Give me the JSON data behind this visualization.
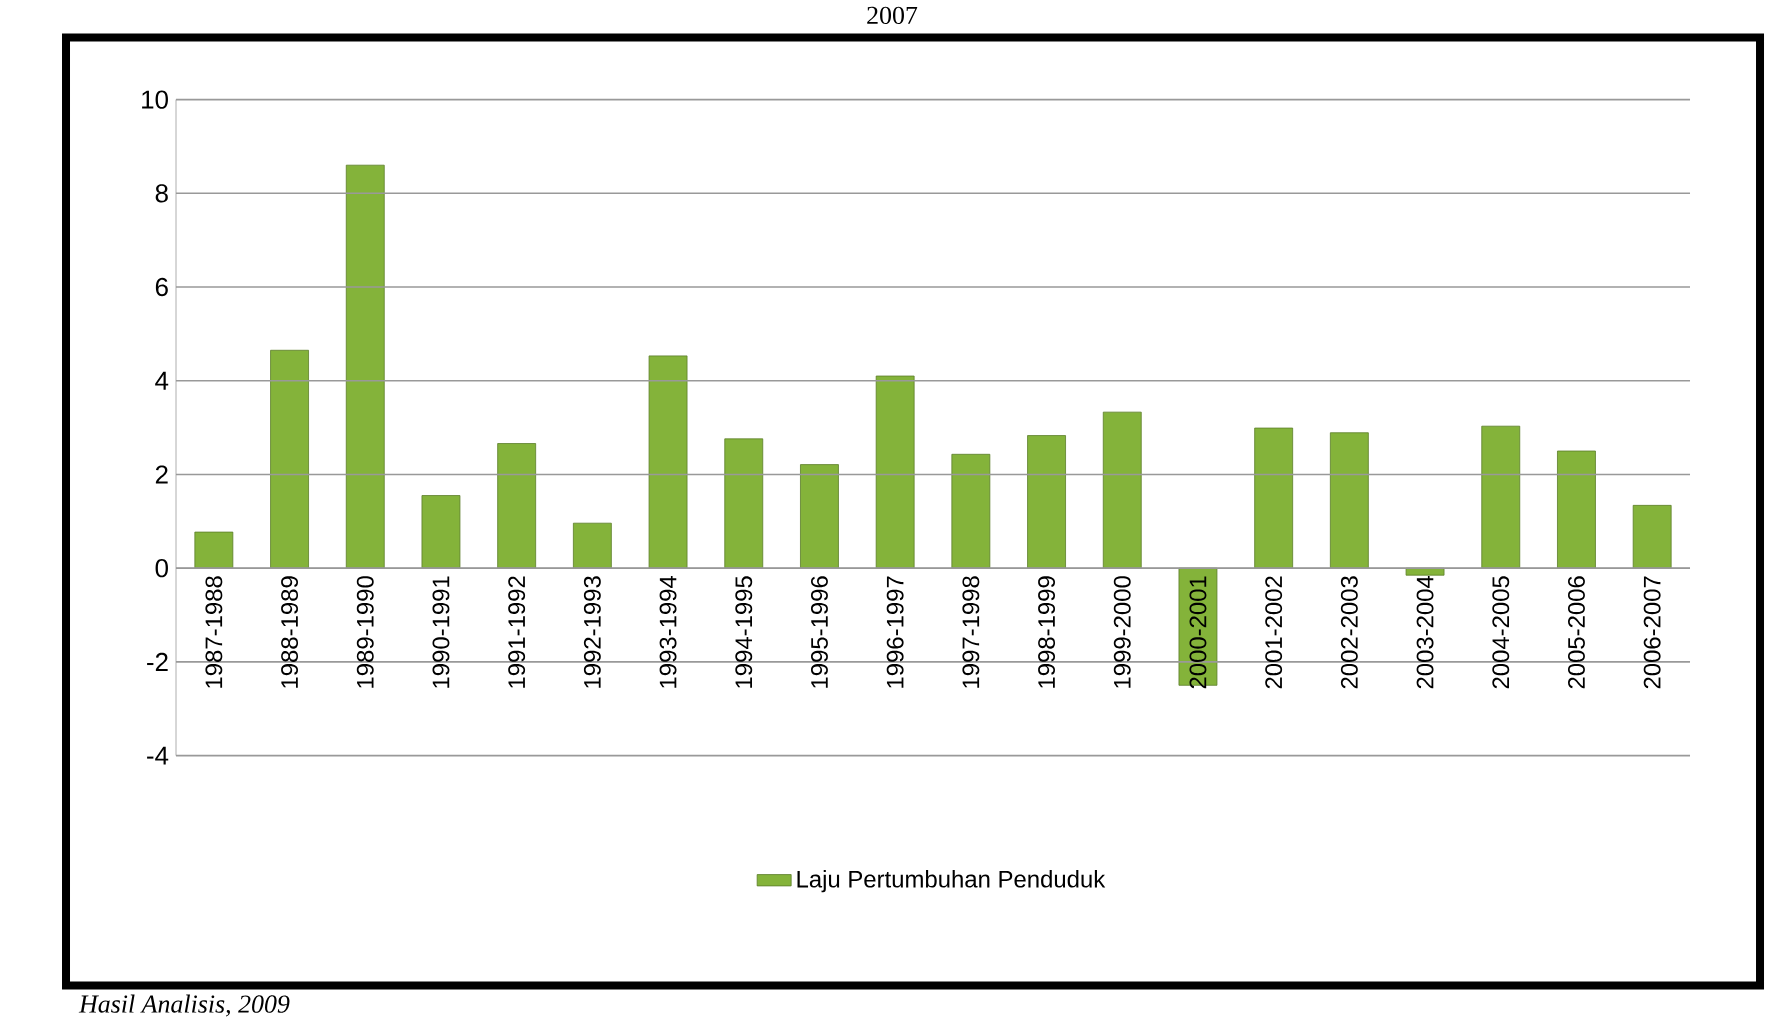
{
  "chart_data": {
    "type": "bar",
    "title": "2007",
    "categories": [
      "1987-1988",
      "1988-1989",
      "1989-1990",
      "1990-1991",
      "1991-1992",
      "1992-1993",
      "1993-1994",
      "1994-1995",
      "1995-1996",
      "1996-1997",
      "1997-1998",
      "1998-1999",
      "1999-2000",
      "2000-2001",
      "2001-2002",
      "2002-2003",
      "2003-2004",
      "2004-2005",
      "2005-2006",
      "2006-2007"
    ],
    "series": [
      {
        "name": "Laju Pertumbuhan Penduduk",
        "color": "#84b33a",
        "values": [
          0.77,
          4.65,
          8.6,
          1.55,
          2.66,
          0.96,
          4.53,
          2.76,
          2.21,
          4.1,
          2.43,
          2.83,
          3.33,
          -2.5,
          2.99,
          2.89,
          -0.15,
          3.03,
          2.5,
          1.34
        ]
      }
    ],
    "ylim": [
      -4,
      10
    ],
    "yticks": [
      -4,
      -2,
      0,
      2,
      4,
      6,
      8,
      10
    ],
    "grid": "y",
    "legend": "bottom",
    "annotations": [
      "Hasil Analisis, 2009"
    ]
  }
}
